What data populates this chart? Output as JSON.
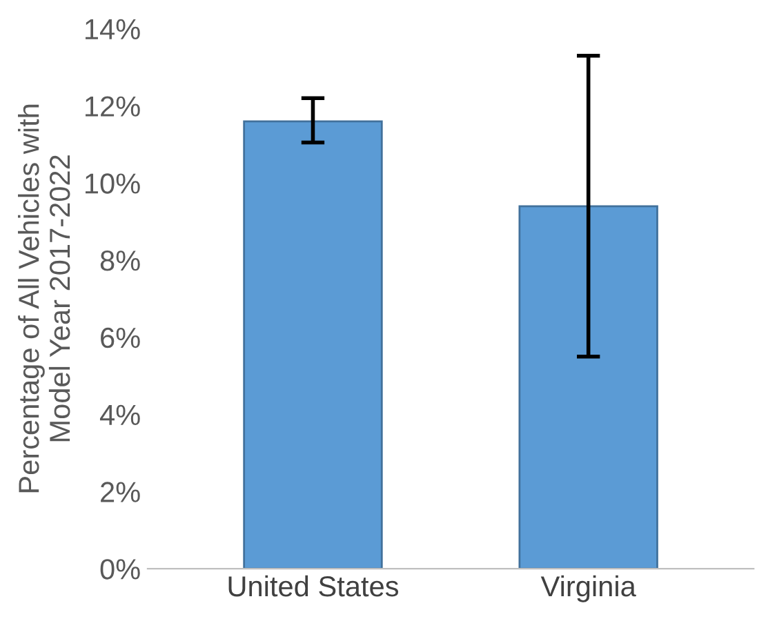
{
  "chart_data": {
    "type": "bar",
    "ylabel": "Percentage of All Vehicles with\nModel Year 2017-2022",
    "categories": [
      "United States",
      "Virginia"
    ],
    "values": [
      11.6,
      9.4
    ],
    "errors": [
      [
        11.05,
        12.2
      ],
      [
        5.5,
        13.3
      ]
    ],
    "color": "#5b9bd5",
    "ylim": [
      0,
      14
    ],
    "yticks": [
      {
        "value": 0,
        "label": "0%"
      },
      {
        "value": 2,
        "label": "2%"
      },
      {
        "value": 4,
        "label": "4%"
      },
      {
        "value": 6,
        "label": "6%"
      },
      {
        "value": 8,
        "label": "8%"
      },
      {
        "value": 10,
        "label": "10%"
      },
      {
        "value": 12,
        "label": "12%"
      },
      {
        "value": 14,
        "label": "14%"
      }
    ],
    "grid": false
  }
}
